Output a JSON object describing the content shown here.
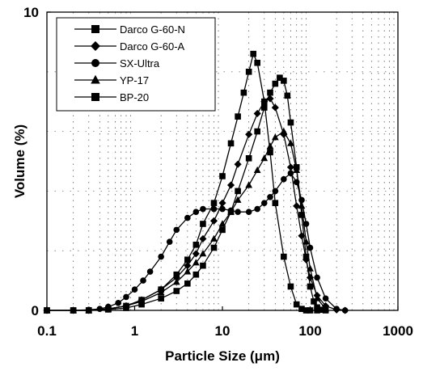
{
  "chart_data": {
    "type": "line",
    "xlabel": "Particle Size (μm)",
    "ylabel": "Volume (%)",
    "xscale": "log",
    "xlim": [
      0.1,
      1000
    ],
    "ylim": [
      0,
      10
    ],
    "x_ticks": [
      "0.1",
      "1",
      "10",
      "100",
      "1000"
    ],
    "y_ticks": [
      "0",
      "10"
    ],
    "grid": "dotted",
    "legend_position": "top-left",
    "series": [
      {
        "name": "Darco G-60-N",
        "marker": "square",
        "x": [
          0.1,
          0.2,
          0.3,
          0.5,
          0.8,
          1.2,
          2,
          3,
          4,
          5,
          6,
          8,
          10,
          12.5,
          15,
          17.5,
          20,
          22.5,
          25,
          30,
          35,
          40,
          50,
          60,
          70,
          80,
          90,
          100,
          120
        ],
        "y": [
          0,
          0,
          0,
          0.05,
          0.15,
          0.35,
          0.7,
          1.2,
          1.7,
          2.2,
          2.9,
          3.6,
          4.5,
          5.6,
          6.5,
          7.3,
          8.0,
          8.6,
          8.3,
          7.0,
          5.3,
          3.6,
          1.8,
          0.8,
          0.2,
          0.05,
          0,
          0,
          0
        ]
      },
      {
        "name": "Darco G-60-A",
        "marker": "diamond",
        "x": [
          0.1,
          0.2,
          0.3,
          0.5,
          0.8,
          1.2,
          2,
          3,
          4,
          5,
          6,
          8,
          10,
          12.5,
          15,
          20,
          25,
          30,
          35,
          40,
          50,
          60,
          70,
          80,
          90,
          100,
          120,
          150,
          200,
          250
        ],
        "y": [
          0,
          0,
          0,
          0.05,
          0.15,
          0.35,
          0.7,
          1.1,
          1.5,
          1.9,
          2.4,
          3.0,
          3.6,
          4.2,
          4.9,
          5.9,
          6.6,
          7.0,
          7.1,
          6.8,
          5.9,
          4.8,
          3.5,
          2.5,
          1.7,
          1.1,
          0.5,
          0.15,
          0.02,
          0
        ]
      },
      {
        "name": "SX-Ultra",
        "marker": "circle",
        "x": [
          0.1,
          0.2,
          0.3,
          0.4,
          0.5,
          0.65,
          0.8,
          1,
          1.25,
          1.5,
          2,
          2.5,
          3,
          4,
          5,
          6,
          8,
          10,
          12.5,
          15,
          20,
          25,
          30,
          35,
          40,
          50,
          60,
          70,
          80,
          90,
          100,
          120,
          150,
          200,
          250
        ],
        "y": [
          0,
          0,
          0.02,
          0.05,
          0.12,
          0.25,
          0.45,
          0.7,
          1.0,
          1.3,
          1.8,
          2.3,
          2.7,
          3.1,
          3.3,
          3.4,
          3.4,
          3.4,
          3.35,
          3.3,
          3.3,
          3.4,
          3.6,
          3.8,
          4.0,
          4.4,
          4.6,
          4.3,
          3.7,
          2.9,
          2.1,
          1.1,
          0.4,
          0.05,
          0
        ]
      },
      {
        "name": "YP-17",
        "marker": "triangle",
        "x": [
          0.1,
          0.2,
          0.3,
          0.5,
          0.8,
          1.2,
          2,
          3,
          4,
          5,
          6,
          8,
          10,
          12.5,
          15,
          20,
          25,
          30,
          35,
          40,
          50,
          60,
          70,
          80,
          90,
          100,
          120,
          150
        ],
        "y": [
          0,
          0,
          0,
          0.05,
          0.15,
          0.3,
          0.6,
          0.95,
          1.3,
          1.6,
          1.9,
          2.4,
          2.9,
          3.3,
          3.7,
          4.2,
          4.7,
          5.1,
          5.5,
          5.8,
          6.0,
          5.6,
          4.7,
          3.5,
          2.3,
          1.4,
          0.4,
          0.05
        ]
      },
      {
        "name": "BP-20",
        "marker": "square",
        "x": [
          0.1,
          0.2,
          0.3,
          0.5,
          0.8,
          1.2,
          2,
          3,
          4,
          5,
          6,
          8,
          10,
          12.5,
          15,
          20,
          25,
          30,
          35,
          40,
          45,
          50,
          55,
          60,
          70,
          80,
          90,
          100,
          110,
          120,
          130,
          150
        ],
        "y": [
          0,
          0,
          0,
          0.03,
          0.08,
          0.2,
          0.4,
          0.65,
          0.9,
          1.2,
          1.5,
          2.1,
          2.7,
          3.3,
          4.0,
          5.1,
          6.0,
          6.8,
          7.3,
          7.6,
          7.8,
          7.7,
          7.2,
          6.3,
          4.8,
          3.2,
          1.8,
          0.8,
          0.3,
          0.1,
          0.02,
          0
        ]
      }
    ]
  }
}
